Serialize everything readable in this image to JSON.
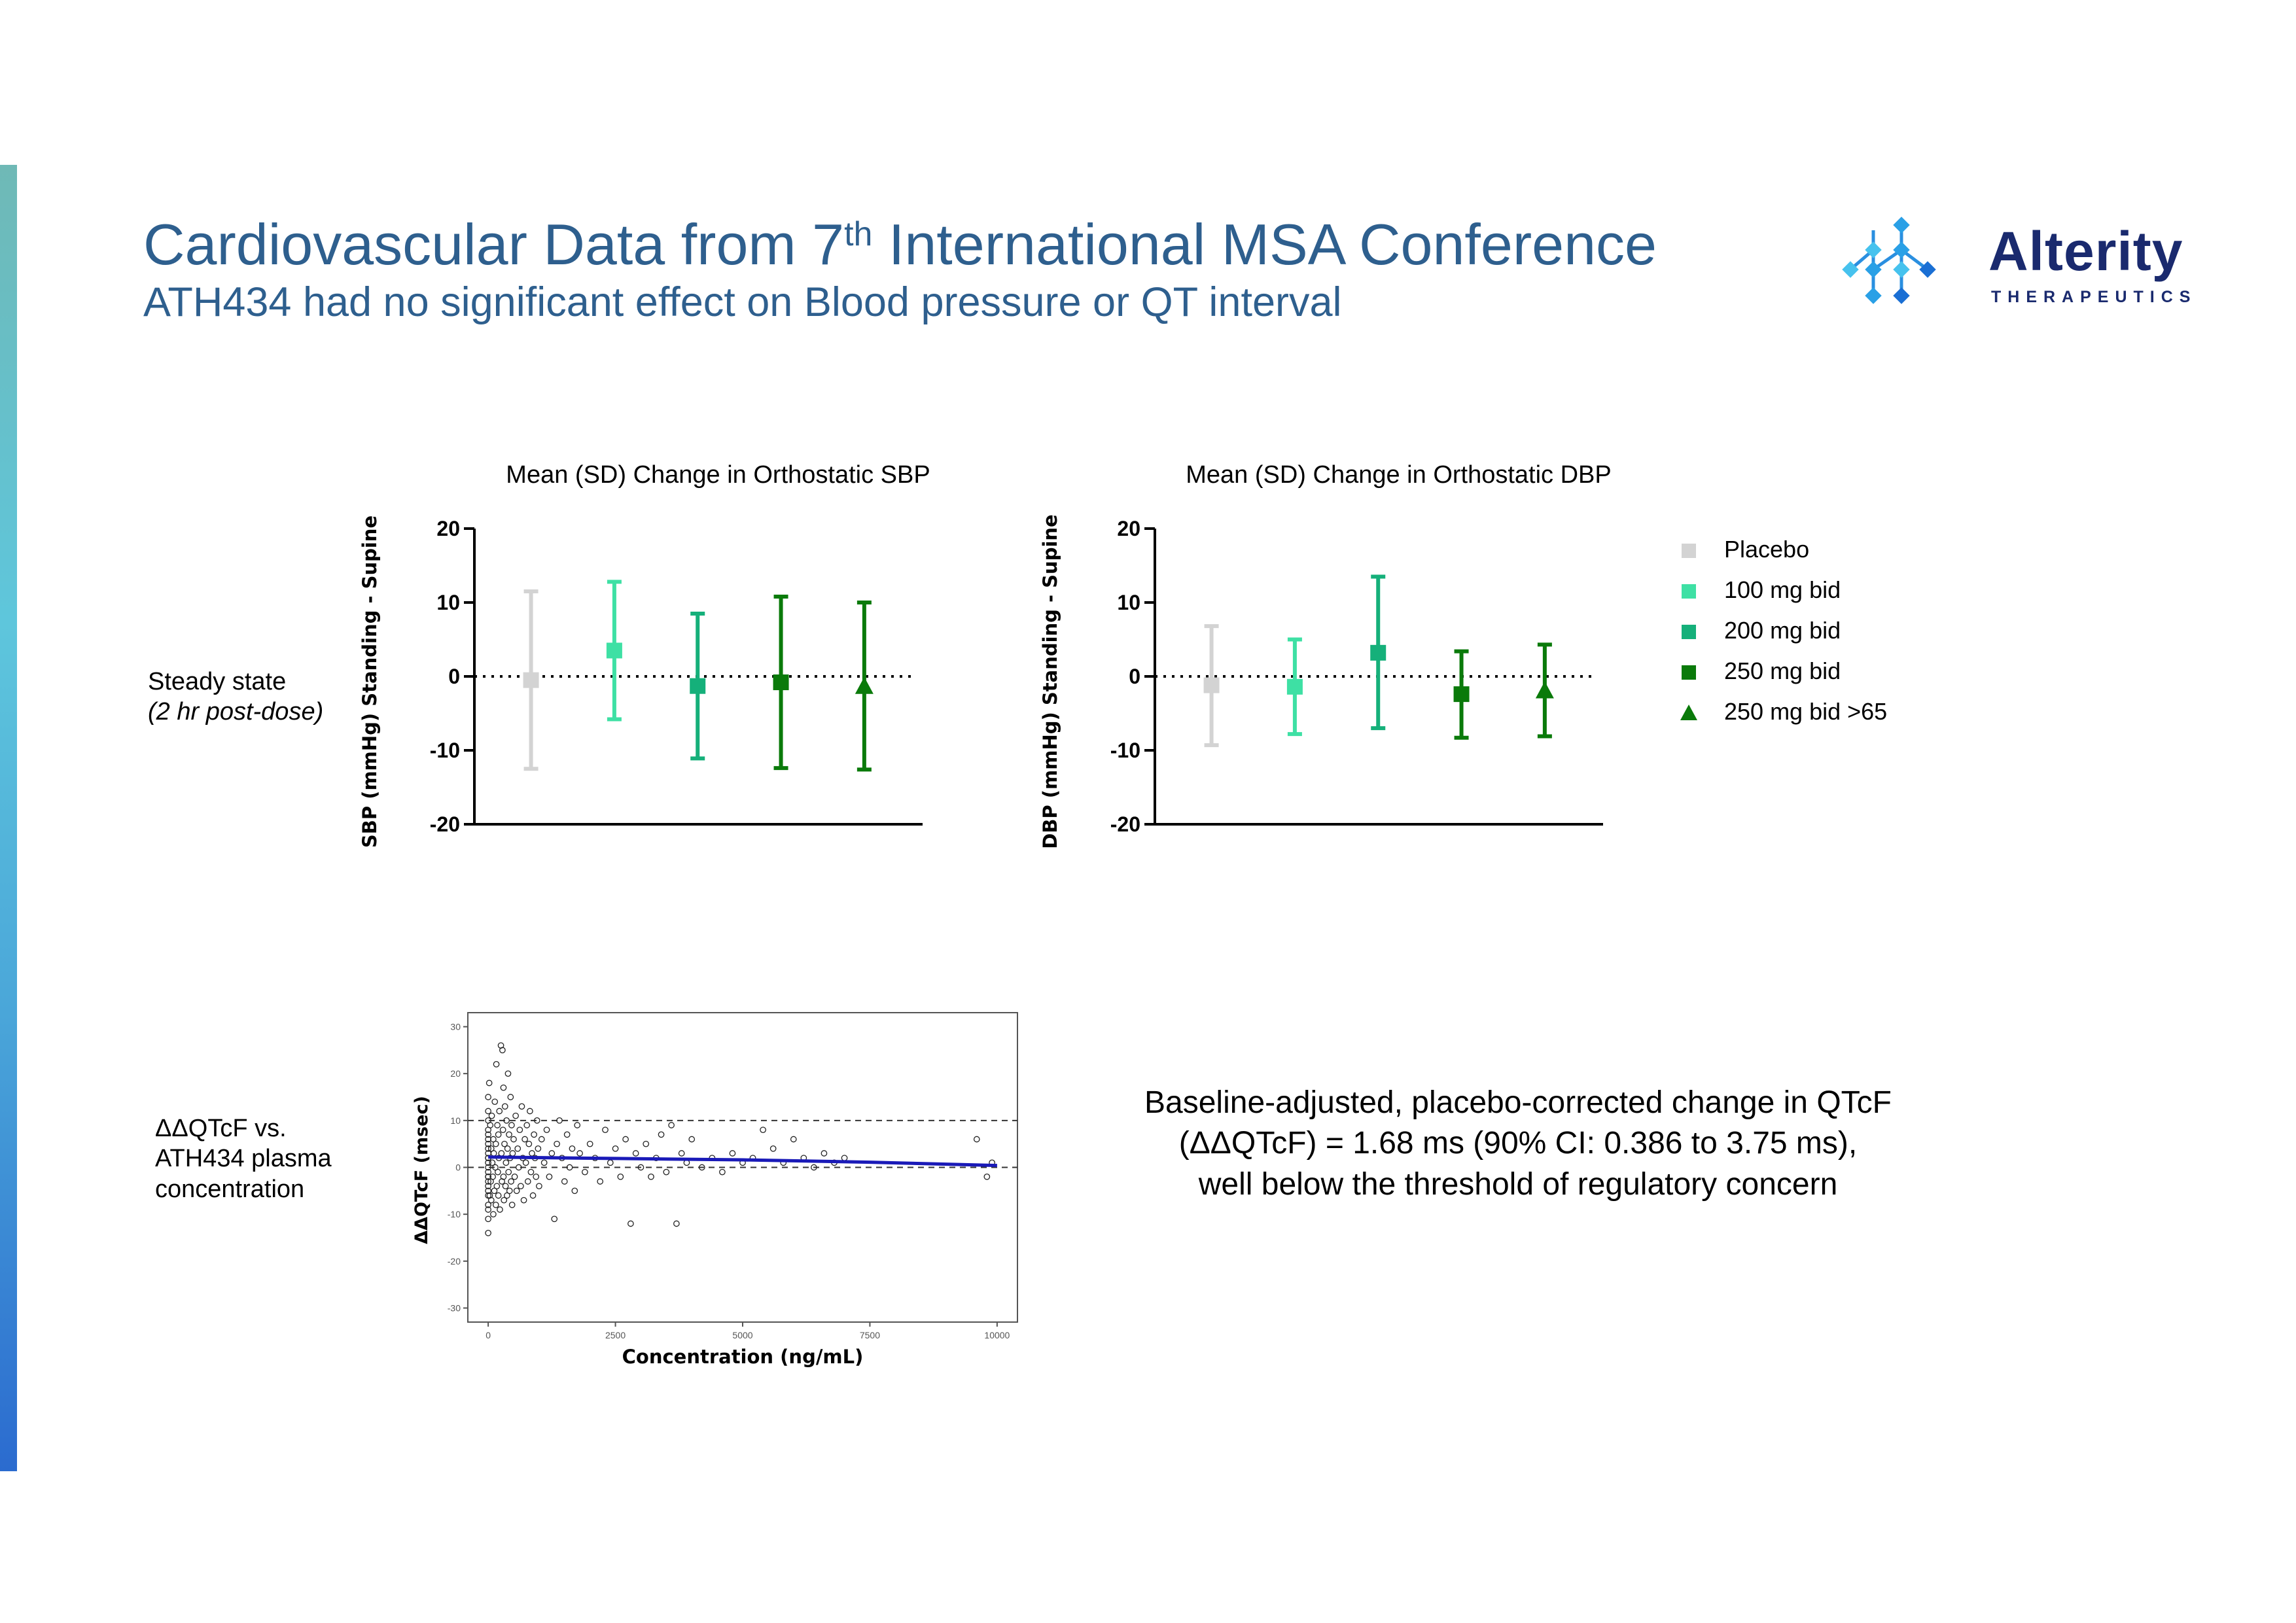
{
  "header": {
    "title_main": "Cardiovascular Data from 7",
    "title_sup": "th",
    "title_rest": " International MSA Conference",
    "subtitle": "ATH434 had no significant effect on Blood pressure or QT interval"
  },
  "logo": {
    "name": "Alterity",
    "tagline": "THERAPEUTICS",
    "color": "#1a2a6e",
    "icon": "molecule-diamond-icon"
  },
  "rows": {
    "steady_state": {
      "line1": "Steady state",
      "line2": "(2 hr post-dose)"
    },
    "qtcf": {
      "line1": "ΔΔQTcF vs.",
      "line2": "ATH434 plasma",
      "line3": "concentration"
    }
  },
  "legend": [
    {
      "label": "Placebo",
      "color": "#d3d3d3",
      "marker": "square"
    },
    {
      "label": "100 mg bid",
      "color": "#3ee0a4",
      "marker": "square"
    },
    {
      "label": "200 mg bid",
      "color": "#15b07a",
      "marker": "square"
    },
    {
      "label": "250 mg bid",
      "color": "#0a7a0a",
      "marker": "square"
    },
    {
      "label": "250 mg bid >65",
      "color": "#0a7a0a",
      "marker": "triangle"
    }
  ],
  "summary": {
    "line1": "Baseline-adjusted, placebo-corrected change in QTcF",
    "line2": "(ΔΔQTcF) = 1.68 ms (90% CI: 0.386 to 3.75 ms),",
    "line3": "well below the threshold of regulatory concern"
  },
  "chart_data": [
    {
      "type": "errorbar",
      "title": "Mean (SD) Change in Orthostatic SBP",
      "ylabel": "SBP (mmHg)  Standing - Supine",
      "ylim": [
        -20,
        20
      ],
      "yticks": [
        20,
        10,
        0,
        -10,
        -20
      ],
      "reference_line": 0,
      "series": [
        {
          "name": "Placebo",
          "mean": -0.5,
          "lower": -12.5,
          "upper": 11.5
        },
        {
          "name": "100 mg bid",
          "mean": 3.5,
          "lower": -5.8,
          "upper": 12.8
        },
        {
          "name": "200 mg bid",
          "mean": -1.3,
          "lower": -11.1,
          "upper": 8.5
        },
        {
          "name": "250 mg bid",
          "mean": -0.8,
          "lower": -12.4,
          "upper": 10.8
        },
        {
          "name": "250 mg bid >65",
          "mean": -1.3,
          "lower": -12.6,
          "upper": 10.0
        }
      ]
    },
    {
      "type": "errorbar",
      "title": "Mean (SD) Change in Orthostatic DBP",
      "ylabel": "DBP (mmHg)  Standing - Supine",
      "ylim": [
        -20,
        20
      ],
      "yticks": [
        20,
        10,
        0,
        -10,
        -20
      ],
      "reference_line": 0,
      "series": [
        {
          "name": "Placebo",
          "mean": -1.2,
          "lower": -9.3,
          "upper": 6.8
        },
        {
          "name": "100 mg bid",
          "mean": -1.4,
          "lower": -7.8,
          "upper": 5.0
        },
        {
          "name": "200 mg bid",
          "mean": 3.2,
          "lower": -7.0,
          "upper": 13.5
        },
        {
          "name": "250 mg bid",
          "mean": -2.4,
          "lower": -8.3,
          "upper": 3.4
        },
        {
          "name": "250 mg bid >65",
          "mean": -1.9,
          "lower": -8.1,
          "upper": 4.3
        }
      ]
    },
    {
      "type": "scatter",
      "xlabel": "Concentration (ng/mL)",
      "ylabel": "ΔΔQTcF (msec)",
      "xlim": [
        -400,
        10400
      ],
      "ylim": [
        -33,
        33
      ],
      "xticks": [
        0,
        2500,
        5000,
        7500,
        10000
      ],
      "yticks": [
        30,
        20,
        10,
        0,
        -10,
        -20,
        -30
      ],
      "reference_lines": [
        10,
        0
      ],
      "trend": [
        [
          0,
          2.2
        ],
        [
          2500,
          1.9
        ],
        [
          5000,
          1.6
        ],
        [
          7500,
          1.1
        ],
        [
          10000,
          0.4
        ]
      ],
      "points": [
        [
          0,
          2
        ],
        [
          0,
          -5
        ],
        [
          0,
          4
        ],
        [
          0,
          -2
        ],
        [
          0,
          7
        ],
        [
          0,
          -8
        ],
        [
          0,
          10
        ],
        [
          0,
          1
        ],
        [
          0,
          -3
        ],
        [
          0,
          5
        ],
        [
          0,
          -11
        ],
        [
          0,
          0
        ],
        [
          0,
          12
        ],
        [
          0,
          -1
        ],
        [
          0,
          3
        ],
        [
          0,
          -6
        ],
        [
          0,
          8
        ],
        [
          0,
          -4
        ],
        [
          0,
          6
        ],
        [
          0,
          -9
        ],
        [
          0,
          15
        ],
        [
          0,
          -14
        ],
        [
          0,
          2
        ],
        [
          0,
          -2
        ],
        [
          20,
          18
        ],
        [
          30,
          -6
        ],
        [
          40,
          9
        ],
        [
          50,
          -3
        ],
        [
          60,
          4
        ],
        [
          60,
          -7
        ],
        [
          70,
          11
        ],
        [
          80,
          1
        ],
        [
          90,
          -2
        ],
        [
          100,
          6
        ],
        [
          100,
          -10
        ],
        [
          110,
          3
        ],
        [
          120,
          -5
        ],
        [
          130,
          14
        ],
        [
          140,
          0
        ],
        [
          150,
          -8
        ],
        [
          150,
          5
        ],
        [
          160,
          22
        ],
        [
          170,
          -4
        ],
        [
          180,
          9
        ],
        [
          190,
          -1
        ],
        [
          200,
          7
        ],
        [
          200,
          -6
        ],
        [
          210,
          2
        ],
        [
          220,
          12
        ],
        [
          230,
          -9
        ],
        [
          250,
          26
        ],
        [
          260,
          3
        ],
        [
          270,
          -3
        ],
        [
          280,
          25
        ],
        [
          290,
          8
        ],
        [
          300,
          -2
        ],
        [
          300,
          17
        ],
        [
          310,
          -7
        ],
        [
          320,
          5
        ],
        [
          330,
          13
        ],
        [
          340,
          -4
        ],
        [
          350,
          1
        ],
        [
          360,
          10
        ],
        [
          370,
          -6
        ],
        [
          380,
          4
        ],
        [
          390,
          20
        ],
        [
          400,
          -1
        ],
        [
          410,
          7
        ],
        [
          420,
          -5
        ],
        [
          430,
          2
        ],
        [
          440,
          15
        ],
        [
          450,
          -3
        ],
        [
          460,
          9
        ],
        [
          470,
          -8
        ],
        [
          480,
          3
        ],
        [
          500,
          6
        ],
        [
          520,
          -2
        ],
        [
          540,
          11
        ],
        [
          560,
          -5
        ],
        [
          580,
          4
        ],
        [
          600,
          0
        ],
        [
          620,
          8
        ],
        [
          640,
          -4
        ],
        [
          660,
          13
        ],
        [
          680,
          2
        ],
        [
          700,
          -7
        ],
        [
          720,
          6
        ],
        [
          740,
          1
        ],
        [
          760,
          9
        ],
        [
          780,
          -3
        ],
        [
          800,
          5
        ],
        [
          820,
          12
        ],
        [
          840,
          -1
        ],
        [
          860,
          3
        ],
        [
          880,
          -6
        ],
        [
          900,
          7
        ],
        [
          920,
          2
        ],
        [
          940,
          -2
        ],
        [
          960,
          10
        ],
        [
          980,
          4
        ],
        [
          1000,
          -4
        ],
        [
          1050,
          6
        ],
        [
          1100,
          1
        ],
        [
          1150,
          8
        ],
        [
          1200,
          -2
        ],
        [
          1250,
          3
        ],
        [
          1300,
          -11
        ],
        [
          1350,
          5
        ],
        [
          1400,
          10
        ],
        [
          1450,
          2
        ],
        [
          1500,
          -3
        ],
        [
          1550,
          7
        ],
        [
          1600,
          0
        ],
        [
          1650,
          4
        ],
        [
          1700,
          -5
        ],
        [
          1750,
          9
        ],
        [
          1800,
          3
        ],
        [
          1900,
          -1
        ],
        [
          2000,
          5
        ],
        [
          2100,
          2
        ],
        [
          2200,
          -3
        ],
        [
          2300,
          8
        ],
        [
          2400,
          1
        ],
        [
          2500,
          4
        ],
        [
          2600,
          -2
        ],
        [
          2700,
          6
        ],
        [
          2800,
          -12
        ],
        [
          2900,
          3
        ],
        [
          3000,
          0
        ],
        [
          3100,
          5
        ],
        [
          3200,
          -2
        ],
        [
          3300,
          2
        ],
        [
          3400,
          7
        ],
        [
          3500,
          -1
        ],
        [
          3600,
          9
        ],
        [
          3700,
          -12
        ],
        [
          3800,
          3
        ],
        [
          3900,
          1
        ],
        [
          4000,
          6
        ],
        [
          4200,
          0
        ],
        [
          4400,
          2
        ],
        [
          4600,
          -1
        ],
        [
          4800,
          3
        ],
        [
          5000,
          1
        ],
        [
          5200,
          2
        ],
        [
          5400,
          8
        ],
        [
          5600,
          4
        ],
        [
          5800,
          1
        ],
        [
          6000,
          6
        ],
        [
          6200,
          2
        ],
        [
          6400,
          0
        ],
        [
          6600,
          3
        ],
        [
          6800,
          1
        ],
        [
          7000,
          2
        ],
        [
          9600,
          6
        ],
        [
          9800,
          -2
        ],
        [
          9900,
          1
        ]
      ]
    }
  ]
}
